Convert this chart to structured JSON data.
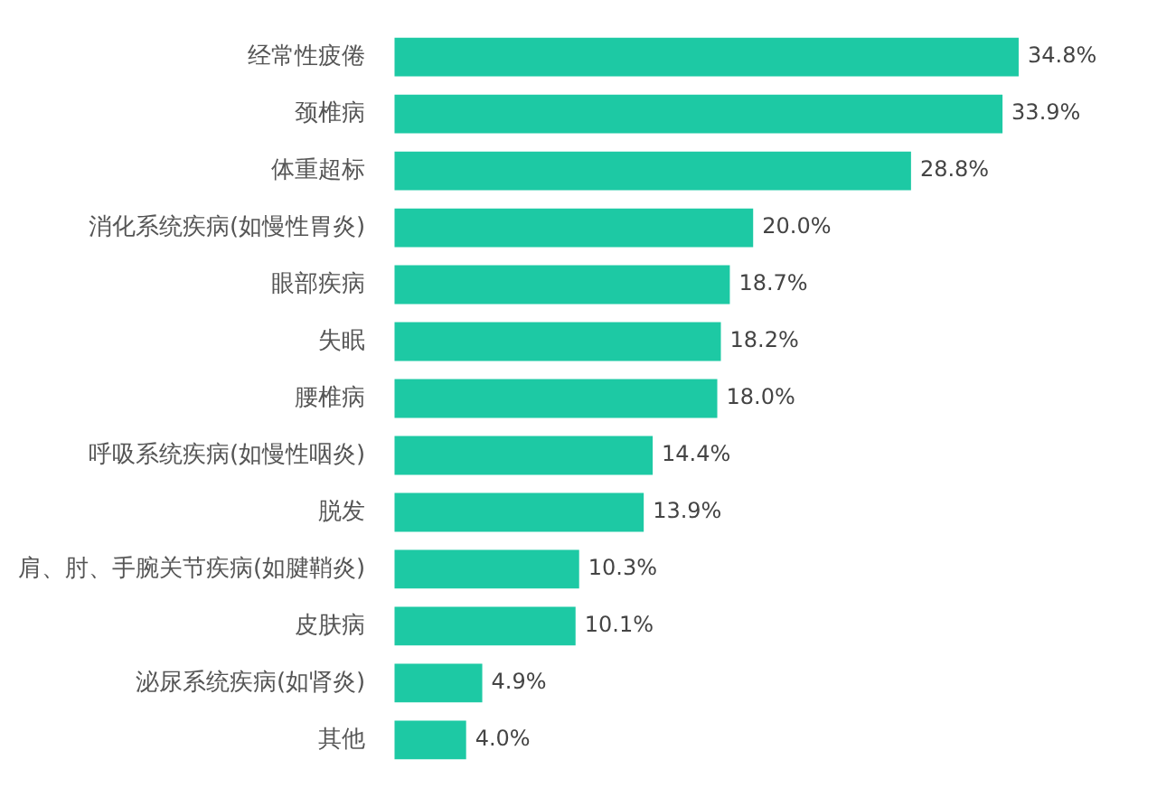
{
  "chart_data": {
    "type": "bar",
    "orientation": "horizontal",
    "categories": [
      "经常性疲倦",
      "颈椎病",
      "体重超标",
      "消化系统疾病(如慢性胃炎)",
      "眼部疾病",
      "失眠",
      "腰椎病",
      "呼吸系统疾病(如慢性咽炎)",
      "脱发",
      "肩、肘、手腕关节疾病(如腱鞘炎)",
      "皮肤病",
      "泌尿系统疾病(如肾炎)",
      "其他"
    ],
    "values": [
      34.8,
      33.9,
      28.8,
      20.0,
      18.7,
      18.2,
      18.0,
      14.4,
      13.9,
      10.3,
      10.1,
      4.9,
      4.0
    ],
    "value_labels": [
      "34.8%",
      "33.9%",
      "28.8%",
      "20.0%",
      "18.7%",
      "18.2%",
      "18.0%",
      "14.4%",
      "13.9%",
      "10.3%",
      "10.1%",
      "4.9%",
      "4.0%"
    ],
    "color": "#1dc9a4"
  }
}
